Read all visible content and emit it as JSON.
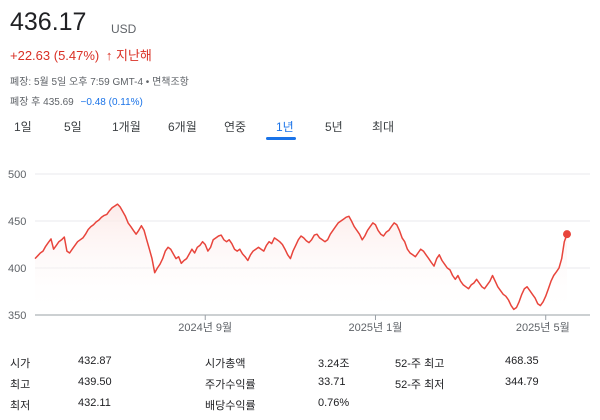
{
  "header": {
    "price": "436.17",
    "currency": "USD",
    "change": "+22.63 (5.47%)",
    "change_arrow": "↑",
    "period": "지난해",
    "close_info": "폐장: 5월 5일 오후 7:59 GMT-4 • 면책조항",
    "after_hours_label": "폐장 후 435.69",
    "after_hours_change": "−0.48 (0.11%)"
  },
  "tabs": [
    "1일",
    "5일",
    "1개월",
    "6개월",
    "연중",
    "1년",
    "5년",
    "최대"
  ],
  "active_tab": "1년",
  "colors": {
    "line": "#e8453c",
    "accent": "#1a73e8",
    "negative": "#d93025"
  },
  "chart_data": {
    "type": "line",
    "ylim": [
      350,
      500
    ],
    "y_ticks": [
      500,
      450,
      400,
      350
    ],
    "x_tick_labels": [
      "2024년 9월",
      "2025년 1월",
      "2025년 5월"
    ],
    "x_ticks_index": [
      64,
      128,
      192
    ],
    "values": [
      410,
      413,
      416,
      418,
      423,
      427,
      431,
      420,
      424,
      428,
      430,
      433,
      418,
      416,
      420,
      424,
      428,
      430,
      432,
      436,
      441,
      444,
      446,
      449,
      451,
      454,
      456,
      457,
      461,
      464,
      466,
      468,
      465,
      460,
      455,
      448,
      444,
      440,
      436,
      440,
      445,
      440,
      430,
      420,
      410,
      395,
      400,
      404,
      410,
      418,
      422,
      420,
      415,
      410,
      412,
      405,
      408,
      410,
      415,
      420,
      416,
      422,
      424,
      428,
      425,
      418,
      422,
      430,
      432,
      434,
      435,
      430,
      428,
      430,
      426,
      420,
      418,
      420,
      415,
      412,
      408,
      414,
      418,
      420,
      422,
      420,
      418,
      424,
      428,
      426,
      432,
      430,
      428,
      425,
      420,
      414,
      410,
      418,
      424,
      430,
      434,
      432,
      429,
      427,
      430,
      435,
      436,
      432,
      430,
      428,
      430,
      436,
      440,
      444,
      448,
      450,
      452,
      454,
      455,
      450,
      444,
      440,
      436,
      430,
      434,
      440,
      444,
      448,
      446,
      440,
      436,
      434,
      438,
      440,
      444,
      448,
      446,
      440,
      432,
      428,
      420,
      416,
      414,
      412,
      416,
      420,
      418,
      414,
      410,
      406,
      402,
      410,
      414,
      408,
      404,
      400,
      398,
      392,
      388,
      392,
      386,
      382,
      380,
      378,
      382,
      384,
      388,
      384,
      380,
      378,
      382,
      386,
      392,
      386,
      380,
      376,
      372,
      370,
      366,
      360,
      356,
      358,
      364,
      372,
      378,
      380,
      376,
      372,
      368,
      362,
      360,
      364,
      370,
      378,
      386,
      392,
      396,
      400,
      410,
      428,
      436
    ]
  },
  "stats": [
    [
      {
        "label": "시가",
        "value": "432.87"
      },
      {
        "label": "시가총액",
        "value": "3.24조"
      },
      {
        "label": "52-주 최고",
        "value": "468.35"
      }
    ],
    [
      {
        "label": "최고",
        "value": "439.50"
      },
      {
        "label": "주가수익률",
        "value": "33.71"
      },
      {
        "label": "52-주 최저",
        "value": "344.79"
      }
    ],
    [
      {
        "label": "최저",
        "value": "432.11"
      },
      {
        "label": "배당수익률",
        "value": "0.76%"
      },
      {
        "label": "",
        "value": ""
      }
    ]
  ]
}
